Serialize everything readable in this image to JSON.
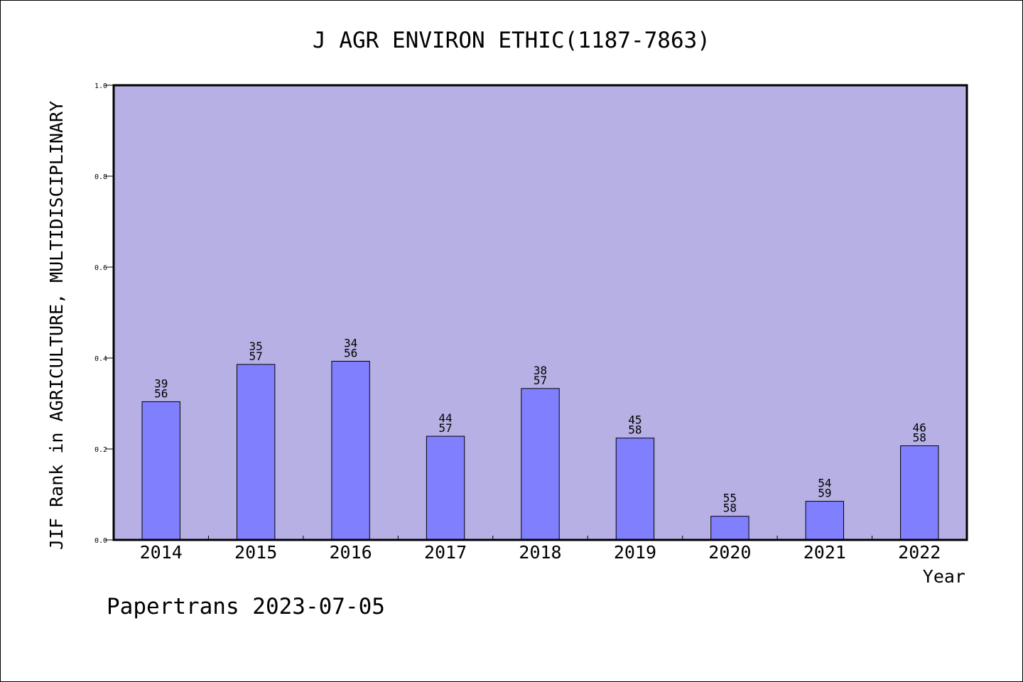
{
  "chart_data": {
    "type": "bar",
    "title": "J AGR ENVIRON ETHIC(1187-7863)",
    "xlabel": "Year",
    "ylabel": "JIF Rank in AGRICULTURE, MULTIDISCIPLINARY",
    "ylim": [
      0,
      1
    ],
    "yticks": [
      "0.0",
      "0.2",
      "0.4",
      "0.6",
      "0.8",
      "1.0"
    ],
    "categories": [
      "2014",
      "2015",
      "2016",
      "2017",
      "2018",
      "2019",
      "2020",
      "2021",
      "2022"
    ],
    "values": [
      0.304,
      0.386,
      0.393,
      0.228,
      0.333,
      0.224,
      0.052,
      0.085,
      0.207
    ],
    "rank_labels": [
      "39",
      "35",
      "34",
      "44",
      "38",
      "45",
      "55",
      "54",
      "46"
    ],
    "total_labels": [
      "56",
      "57",
      "56",
      "57",
      "57",
      "58",
      "58",
      "59",
      "58"
    ],
    "grid": false,
    "colors": {
      "plot_background": "#b6b0e4",
      "bar_fill": "#8080ff",
      "bar_stroke": "#000000"
    }
  },
  "footer": {
    "credit": "Papertrans 2023-07-05"
  }
}
